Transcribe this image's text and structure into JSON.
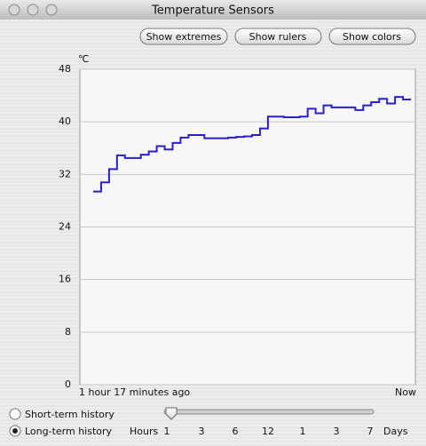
{
  "window": {
    "title": "Temperature Sensors"
  },
  "buttons": [
    "Show extremes",
    "Show rulers",
    "Show colors"
  ],
  "chart_data": {
    "type": "line",
    "y_label": "℃",
    "x_start_label": "1 hour 17 minutes  ago",
    "x_end_label": "Now",
    "series": [
      {
        "color": "#2a1fc8",
        "values": [
          29.4,
          30.8,
          32.8,
          34.9,
          34.5,
          34.5,
          35.0,
          35.5,
          36.3,
          35.8,
          36.8,
          37.6,
          38.0,
          38.0,
          37.5,
          37.5,
          37.5,
          37.6,
          37.7,
          37.8,
          38.0,
          39.0,
          40.8,
          40.8,
          40.7,
          40.7,
          40.8,
          42.0,
          41.3,
          42.5,
          42.2,
          42.2,
          42.2,
          41.8,
          42.5,
          43.0,
          43.5,
          42.8,
          43.8,
          43.4
        ]
      }
    ],
    "ylim": [
      0,
      48
    ],
    "yticks": [
      0,
      8,
      16,
      24,
      32,
      40,
      48
    ],
    "grid": true
  },
  "history": {
    "options": [
      "Short-term history",
      "Long-term history"
    ],
    "selected": 1,
    "hours_label": "Hours",
    "days_label": "Days",
    "slider_labels": [
      "1",
      "3",
      "6",
      "12",
      "1",
      "3",
      "7"
    ]
  }
}
